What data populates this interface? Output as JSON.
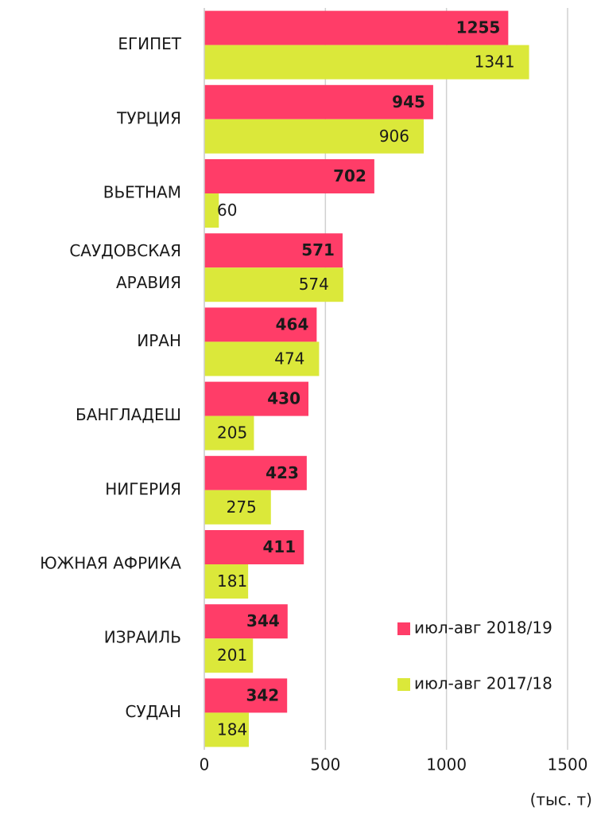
{
  "chart_data": {
    "type": "hbar",
    "categories": [
      "ЕГИПЕТ",
      "ТУРЦИЯ",
      "ВЬЕТНАМ",
      "САУДОВСКАЯ АРАВИЯ",
      "ИРАН",
      "БАНГЛАДЕШ",
      "НИГЕРИЯ",
      "ЮЖНАЯ АФРИКА",
      "ИЗРАИЛЬ",
      "СУДАН"
    ],
    "series": [
      {
        "name": "июл-авг 2018/19",
        "color": "#ff3d68",
        "values": [
          1255,
          945,
          702,
          571,
          464,
          430,
          423,
          411,
          344,
          342
        ]
      },
      {
        "name": "июл-авг 2017/18",
        "color": "#dbe83a",
        "values": [
          1341,
          906,
          60,
          574,
          474,
          205,
          275,
          181,
          201,
          184
        ]
      }
    ],
    "xlim": [
      0,
      1500
    ],
    "xticks": [
      0,
      500,
      1000,
      1500
    ],
    "grid": true,
    "x_unit_label": "(тыс. т)",
    "legend": "lower-right"
  }
}
